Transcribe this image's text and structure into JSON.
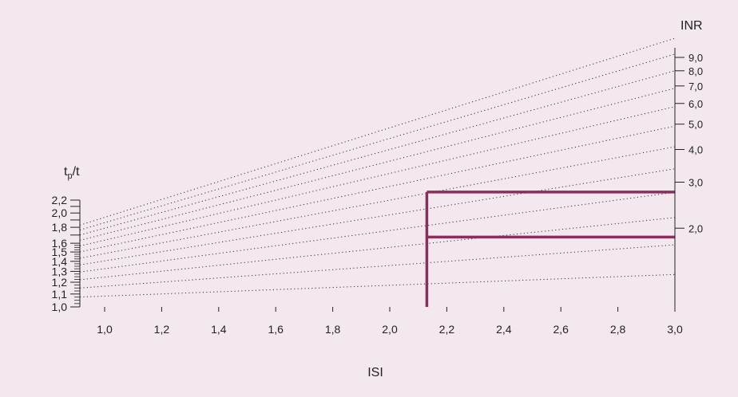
{
  "chart_data": {
    "type": "line",
    "title": "",
    "xlabel": "ISI",
    "ylabel_left": "t",
    "ylabel_left_subscript": "p",
    "ylabel_left_suffix": "/t",
    "ylabel_right": "INR",
    "xlim": [
      0.9,
      3.0
    ],
    "x_ticks": [
      "1,0",
      "1,2",
      "1,4",
      "1,6",
      "1,8",
      "2,0",
      "2,2",
      "2,4",
      "2,6",
      "2,8",
      "3,0"
    ],
    "x_tick_values": [
      1.0,
      1.2,
      1.4,
      1.6,
      1.8,
      2.0,
      2.2,
      2.4,
      2.6,
      2.8,
      3.0
    ],
    "ratio_ticks": [
      "1,0",
      "1,1",
      "1,2",
      "1,3",
      "1,4",
      "1,5",
      "1,6",
      "1,8",
      "2,0",
      "2,2"
    ],
    "ratio_tick_values": [
      1.0,
      1.1,
      1.2,
      1.3,
      1.4,
      1.5,
      1.6,
      1.8,
      2.0,
      2.2
    ],
    "ratio_minor_ticks": [
      1.7,
      1.9,
      2.1
    ],
    "inr_ticks": [
      "2,0",
      "3,0",
      "4,0",
      "5,0",
      "6,0",
      "7,0",
      "8,0",
      "9,0"
    ],
    "inr_tick_values": [
      2.0,
      3.0,
      4.0,
      5.0,
      6.0,
      7.0,
      8.0,
      9.0
    ],
    "ratio_lines": [
      1.1,
      1.2,
      1.3,
      1.4,
      1.5,
      1.6,
      1.7,
      1.8,
      1.9,
      2.0,
      2.1,
      2.2
    ],
    "highlight": {
      "isi": 2.13,
      "inr_levels": [
        1.85,
        2.75
      ],
      "color": "#8a2f5b"
    },
    "background_color": "#f3e8ee",
    "grid": false
  }
}
